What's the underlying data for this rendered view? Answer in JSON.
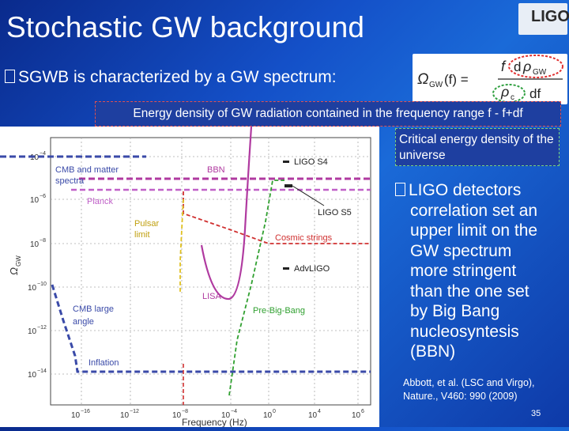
{
  "header": {
    "title": "Stochastic GW background",
    "logo": "LIGO"
  },
  "intro": {
    "bullet_glyph": "\u0000",
    "text": "SGWB is characterized by a GW spectrum:"
  },
  "formula": {
    "lhs": "Ω",
    "lhs_sub": "GW",
    "arg": "(f) =",
    "num_f": "f",
    "num_d": "d",
    "num_rho": "ρ",
    "num_rho_sub": "GW",
    "den_rho": "ρ",
    "den_rho_sub": "c",
    "den_df": "df"
  },
  "callouts": {
    "energy_density": "Energy density of GW radiation contained in the frequency range f - f+df",
    "critical_density": "Critical energy density of the universe"
  },
  "ligo_bullet": {
    "first_line": "LIGO detectors",
    "lines": [
      "correlation set an",
      "upper limit on the",
      "GW spectrum",
      "more stringent",
      "than the one set",
      "by Big Bang",
      "nucleosyntesis",
      "(BBN)"
    ]
  },
  "citation": {
    "line1": "Abbott, et al. (LSC and Virgo),",
    "line2": "Nature., V460: 990 (2009)"
  },
  "page_number": "35",
  "plot": {
    "y_axis_label": "Ω",
    "y_axis_label_sub": "GW",
    "x_axis_label": "Frequency (Hz)",
    "y_ticks": [
      {
        "base": "10",
        "exp": "−4"
      },
      {
        "base": "10",
        "exp": "−6"
      },
      {
        "base": "10",
        "exp": "−8"
      },
      {
        "base": "10",
        "exp": "−10"
      },
      {
        "base": "10",
        "exp": "−12"
      },
      {
        "base": "10",
        "exp": "−14"
      }
    ],
    "x_ticks": [
      {
        "base": "10",
        "exp": "−16"
      },
      {
        "base": "10",
        "exp": "−12"
      },
      {
        "base": "10",
        "exp": "−8"
      },
      {
        "base": "10",
        "exp": "−4"
      },
      {
        "base": "10",
        "exp": "0"
      },
      {
        "base": "10",
        "exp": "4"
      },
      {
        "base": "10",
        "exp": "6"
      }
    ],
    "labels": {
      "cmb_matter_1": "CMB and matter",
      "cmb_matter_2": "spectra",
      "bbn": "BBN",
      "ligo_s4": "LIGO S4",
      "planck": "Planck",
      "ligo_s5": "LIGO S5",
      "pulsar_1": "Pulsar",
      "pulsar_2": "limit",
      "cosmic_strings": "Cosmic strings",
      "adv_ligo": "AdvLIGO",
      "lisa": "LISA",
      "pre_big_bang": "Pre-Big-Bang",
      "cmb_large_1": "CMB large",
      "cmb_large_2": "angle",
      "inflation": "Inflation"
    },
    "colors": {
      "cmb": "#3a4aa8",
      "bbn": "#b03aa0",
      "planck": "#c060c8",
      "pulsar": "#e0c020",
      "cosmic": "#d03030",
      "lisa": "#b03aa0",
      "prebigbang": "#30a030",
      "inflation": "#3a4aa8"
    }
  }
}
